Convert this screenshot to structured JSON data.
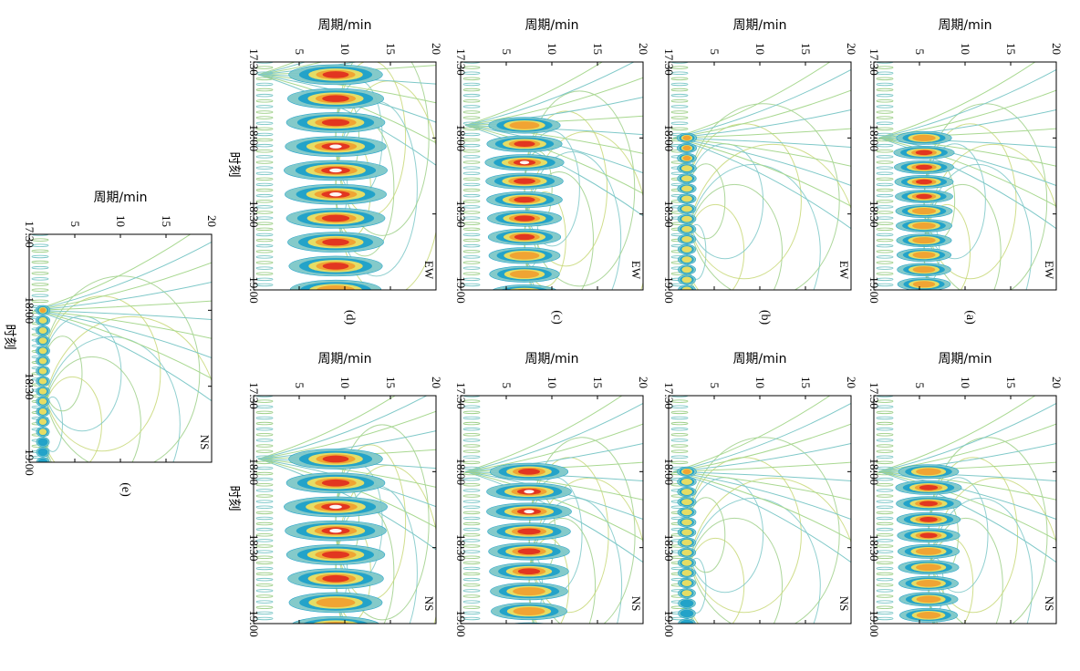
{
  "figure": {
    "orientation": "rotated 90 degrees clockwise",
    "colormap": [
      "#7ec8c8",
      "#1ea0c8",
      "#1e64b4",
      "#f0e060",
      "#f0a030",
      "#e03020",
      "#ffffff"
    ],
    "rows": [
      {
        "panel_label": "(a)",
        "panels": [
          {
            "component": "EW",
            "x_label": "周期/min",
            "y_label": "",
            "x_ticks": [
              "5",
              "10",
              "15",
              "20"
            ],
            "y_ticks": [
              "17:30",
              "18:00",
              "18:30",
              "19:00"
            ]
          },
          {
            "component": "NS",
            "x_label": "周期/min",
            "y_label": "",
            "x_ticks": [
              "5",
              "10",
              "15",
              "20"
            ],
            "y_ticks": [
              "17:30",
              "18:00",
              "18:30",
              "19:00"
            ]
          }
        ]
      },
      {
        "panel_label": "(b)",
        "panels": [
          {
            "component": "EW",
            "x_label": "周期/min",
            "y_label": "",
            "x_ticks": [
              "5",
              "10",
              "15",
              "20"
            ],
            "y_ticks": [
              "17:30",
              "18:00",
              "18:30",
              "19:00"
            ]
          },
          {
            "component": "NS",
            "x_label": "周期/min",
            "y_label": "",
            "x_ticks": [
              "5",
              "10",
              "15",
              "20"
            ],
            "y_ticks": [
              "17:30",
              "18:00",
              "18:30",
              "19:00"
            ]
          }
        ]
      },
      {
        "panel_label": "(c)",
        "panels": [
          {
            "component": "EW",
            "x_label": "周期/min",
            "y_label": "",
            "x_ticks": [
              "5",
              "10",
              "15",
              "20"
            ],
            "y_ticks": [
              "17:30",
              "18:00",
              "18:30",
              "19:00"
            ]
          },
          {
            "component": "NS",
            "x_label": "周期/min",
            "y_label": "",
            "x_ticks": [
              "5",
              "10",
              "15",
              "20"
            ],
            "y_ticks": [
              "17:30",
              "18:00",
              "18:30",
              "19:00"
            ]
          }
        ]
      },
      {
        "panel_label": "(d)",
        "panels": [
          {
            "component": "EW",
            "x_label": "周期/min",
            "y_label": "时刻",
            "x_ticks": [
              "5",
              "10",
              "15",
              "20"
            ],
            "y_ticks": [
              "17:30",
              "18:00",
              "18:30",
              "19:00"
            ]
          },
          {
            "component": "NS",
            "x_label": "周期/min",
            "y_label": "时刻",
            "x_ticks": [
              "5",
              "10",
              "15",
              "20"
            ],
            "y_ticks": [
              "17:30",
              "18:00",
              "18:30",
              "19:00"
            ]
          }
        ]
      },
      {
        "panel_label": "(e)",
        "panels": [
          {
            "component": "NS",
            "x_label": "周期/min",
            "y_label": "时刻",
            "x_ticks": [
              "5",
              "10",
              "15",
              "20"
            ],
            "y_ticks": [
              "17:30",
              "18:00",
              "18:30",
              "19:00"
            ]
          }
        ]
      }
    ]
  },
  "chart_data": [
    {
      "type": "heatmap",
      "panel": "(a)",
      "series": [
        {
          "name": "EW"
        }
      ],
      "xlabel": "周期/min",
      "ylabel": "",
      "xlim": [
        0,
        20
      ],
      "ylim": [
        "17:30",
        "19:00"
      ],
      "x_ticks": [
        5,
        10,
        15,
        20
      ],
      "y_ticks": [
        "17:30",
        "18:00",
        "18:30",
        "19:00"
      ],
      "peak_period_min": 5.5,
      "peak_time": "18:05",
      "onset_time": "18:00",
      "intensity": 0.8
    },
    {
      "type": "heatmap",
      "panel": "(a)",
      "series": [
        {
          "name": "NS"
        }
      ],
      "xlabel": "周期/min",
      "ylabel": "",
      "xlim": [
        0,
        20
      ],
      "ylim": [
        "17:30",
        "19:00"
      ],
      "x_ticks": [
        5,
        10,
        15,
        20
      ],
      "y_ticks": [
        "17:30",
        "18:00",
        "18:30",
        "19:00"
      ],
      "peak_period_min": 6,
      "peak_time": "18:05",
      "onset_time": "18:00",
      "intensity": 0.8
    },
    {
      "type": "heatmap",
      "panel": "(b)",
      "series": [
        {
          "name": "EW"
        }
      ],
      "xlabel": "周期/min",
      "ylabel": "",
      "xlim": [
        0,
        20
      ],
      "ylim": [
        "17:30",
        "19:00"
      ],
      "x_ticks": [
        5,
        10,
        15,
        20
      ],
      "y_ticks": [
        "17:30",
        "18:00",
        "18:30",
        "19:00"
      ],
      "peak_period_min": 2,
      "peak_time": "18:00",
      "onset_time": "18:00",
      "intensity": 0.55
    },
    {
      "type": "heatmap",
      "panel": "(b)",
      "series": [
        {
          "name": "NS"
        }
      ],
      "xlabel": "周期/min",
      "ylabel": "",
      "xlim": [
        0,
        20
      ],
      "ylim": [
        "17:30",
        "19:00"
      ],
      "x_ticks": [
        5,
        10,
        15,
        20
      ],
      "y_ticks": [
        "17:30",
        "18:00",
        "18:30",
        "19:00"
      ],
      "peak_period_min": 2,
      "peak_time": "18:00",
      "onset_time": "18:00",
      "intensity": 0.5
    },
    {
      "type": "heatmap",
      "panel": "(c)",
      "series": [
        {
          "name": "EW"
        }
      ],
      "xlabel": "周期/min",
      "ylabel": "",
      "xlim": [
        0,
        20
      ],
      "ylim": [
        "17:30",
        "19:00"
      ],
      "x_ticks": [
        5,
        10,
        15,
        20
      ],
      "y_ticks": [
        "17:30",
        "18:00",
        "18:30",
        "19:00"
      ],
      "peak_period_min": 7,
      "peak_time": "18:10",
      "onset_time": "17:55",
      "intensity": 0.85
    },
    {
      "type": "heatmap",
      "panel": "(c)",
      "series": [
        {
          "name": "NS"
        }
      ],
      "xlabel": "周期/min",
      "ylabel": "",
      "xlim": [
        0,
        20
      ],
      "ylim": [
        "17:30",
        "19:00"
      ],
      "x_ticks": [
        5,
        10,
        15,
        20
      ],
      "y_ticks": [
        "17:30",
        "18:00",
        "18:30",
        "19:00"
      ],
      "peak_period_min": 7.5,
      "peak_time": "18:10",
      "onset_time": "18:00",
      "intensity": 0.9
    },
    {
      "type": "heatmap",
      "panel": "(d)",
      "series": [
        {
          "name": "EW"
        }
      ],
      "xlabel": "周期/min",
      "ylabel": "时刻",
      "xlim": [
        0,
        20
      ],
      "ylim": [
        "17:30",
        "19:00"
      ],
      "x_ticks": [
        5,
        10,
        15,
        20
      ],
      "y_ticks": [
        "17:30",
        "18:00",
        "18:30",
        "19:00"
      ],
      "peak_period_min": 9,
      "peak_time": "18:15",
      "onset_time": "17:35",
      "intensity": 0.9
    },
    {
      "type": "heatmap",
      "panel": "(d)",
      "series": [
        {
          "name": "NS"
        }
      ],
      "xlabel": "周期/min",
      "ylabel": "时刻",
      "xlim": [
        0,
        20
      ],
      "ylim": [
        "17:30",
        "19:00"
      ],
      "x_ticks": [
        5,
        10,
        15,
        20
      ],
      "y_ticks": [
        "17:30",
        "18:00",
        "18:30",
        "19:00"
      ],
      "peak_period_min": 9,
      "peak_time": "18:15",
      "onset_time": "17:55",
      "intensity": 0.9
    },
    {
      "type": "heatmap",
      "panel": "(e)",
      "series": [
        {
          "name": "NS"
        }
      ],
      "xlabel": "周期/min",
      "ylabel": "时刻",
      "xlim": [
        0,
        20
      ],
      "ylim": [
        "17:30",
        "19:00"
      ],
      "x_ticks": [
        5,
        10,
        15,
        20
      ],
      "y_ticks": [
        "17:30",
        "18:00",
        "18:30",
        "19:00"
      ],
      "peak_period_min": 1.5,
      "peak_time": "18:00",
      "onset_time": "18:00",
      "intensity": 0.5
    }
  ]
}
